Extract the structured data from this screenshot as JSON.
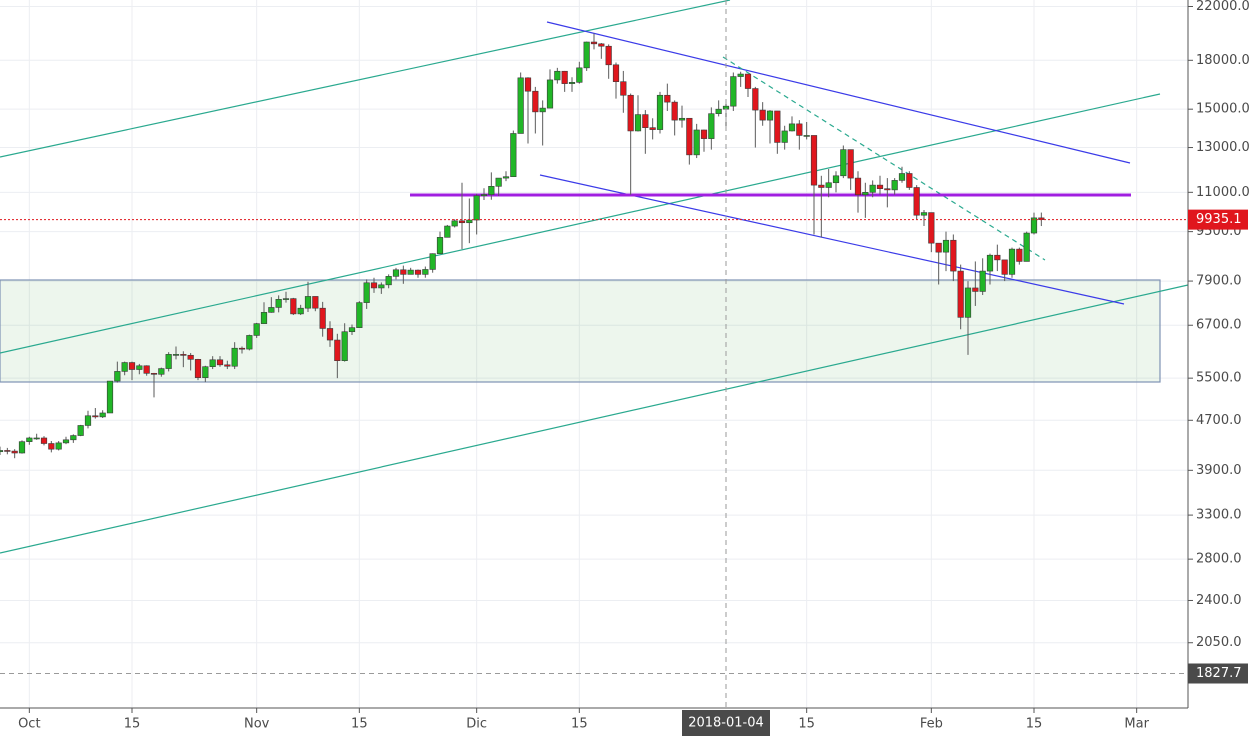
{
  "chart_data": {
    "type": "candlestick",
    "log_scale": true,
    "grid": true,
    "up_color": "#21b627",
    "down_color": "#e0161d",
    "xlim": [
      "2017-09-27",
      "2018-03-08"
    ],
    "ylim": [
      1607,
      22540
    ],
    "xticks": [
      {
        "value": "2017-10-01",
        "label": "Oct"
      },
      {
        "value": "2017-10-15",
        "label": "15"
      },
      {
        "value": "2017-11-01",
        "label": "Nov"
      },
      {
        "value": "2017-11-15",
        "label": "15"
      },
      {
        "value": "2017-12-01",
        "label": "Dic"
      },
      {
        "value": "2017-12-15",
        "label": "15"
      },
      {
        "value": "2018-01-15",
        "label": "15"
      },
      {
        "value": "2018-02-01",
        "label": "Feb"
      },
      {
        "value": "2018-02-15",
        "label": "15"
      },
      {
        "value": "2018-03-01",
        "label": "Mar"
      }
    ],
    "yticks": [
      {
        "value": 22000,
        "label": "22000.0"
      },
      {
        "value": 18000,
        "label": "18000.0"
      },
      {
        "value": 15000,
        "label": "15000.0"
      },
      {
        "value": 13000,
        "label": "13000.0"
      },
      {
        "value": 11000,
        "label": "11000.0"
      },
      {
        "value": 9500,
        "label": "9500.0"
      },
      {
        "value": 7900,
        "label": "7900.0"
      },
      {
        "value": 6700,
        "label": "6700.0"
      },
      {
        "value": 5500,
        "label": "5500.0"
      },
      {
        "value": 4700,
        "label": "4700.0"
      },
      {
        "value": 3900,
        "label": "3900.0"
      },
      {
        "value": 3300,
        "label": "3300.0"
      },
      {
        "value": 2800,
        "label": "2800.0"
      },
      {
        "value": 2400,
        "label": "2400.0"
      },
      {
        "value": 2050,
        "label": "2050.0"
      }
    ],
    "last_price": 9935.1,
    "crosshair": {
      "x": "2018-01-04",
      "y": 1827.7
    },
    "x": [
      "2017-09-27",
      "2017-09-28",
      "2017-09-29",
      "2017-09-30",
      "2017-10-01",
      "2017-10-02",
      "2017-10-03",
      "2017-10-04",
      "2017-10-05",
      "2017-10-06",
      "2017-10-07",
      "2017-10-08",
      "2017-10-09",
      "2017-10-10",
      "2017-10-11",
      "2017-10-12",
      "2017-10-13",
      "2017-10-14",
      "2017-10-15",
      "2017-10-16",
      "2017-10-17",
      "2017-10-18",
      "2017-10-19",
      "2017-10-20",
      "2017-10-21",
      "2017-10-22",
      "2017-10-23",
      "2017-10-24",
      "2017-10-25",
      "2017-10-26",
      "2017-10-27",
      "2017-10-28",
      "2017-10-29",
      "2017-10-30",
      "2017-10-31",
      "2017-11-01",
      "2017-11-02",
      "2017-11-03",
      "2017-11-04",
      "2017-11-05",
      "2017-11-06",
      "2017-11-07",
      "2017-11-08",
      "2017-11-09",
      "2017-11-10",
      "2017-11-11",
      "2017-11-12",
      "2017-11-13",
      "2017-11-14",
      "2017-11-15",
      "2017-11-16",
      "2017-11-17",
      "2017-11-18",
      "2017-11-19",
      "2017-11-20",
      "2017-11-21",
      "2017-11-22",
      "2017-11-23",
      "2017-11-24",
      "2017-11-25",
      "2017-11-26",
      "2017-11-27",
      "2017-11-28",
      "2017-11-29",
      "2017-11-30",
      "2017-12-01",
      "2017-12-02",
      "2017-12-03",
      "2017-12-04",
      "2017-12-05",
      "2017-12-06",
      "2017-12-07",
      "2017-12-08",
      "2017-12-09",
      "2017-12-10",
      "2017-12-11",
      "2017-12-12",
      "2017-12-13",
      "2017-12-14",
      "2017-12-15",
      "2017-12-16",
      "2017-12-17",
      "2017-12-18",
      "2017-12-19",
      "2017-12-20",
      "2017-12-21",
      "2017-12-22",
      "2017-12-23",
      "2017-12-24",
      "2017-12-25",
      "2017-12-26",
      "2017-12-27",
      "2017-12-28",
      "2017-12-29",
      "2017-12-30",
      "2017-12-31",
      "2018-01-01",
      "2018-01-02",
      "2018-01-03",
      "2018-01-04",
      "2018-01-05",
      "2018-01-06",
      "2018-01-07",
      "2018-01-08",
      "2018-01-09",
      "2018-01-10",
      "2018-01-11",
      "2018-01-12",
      "2018-01-13",
      "2018-01-14",
      "2018-01-15",
      "2018-01-16",
      "2018-01-17",
      "2018-01-18",
      "2018-01-19",
      "2018-01-20",
      "2018-01-21",
      "2018-01-22",
      "2018-01-23",
      "2018-01-24",
      "2018-01-25",
      "2018-01-26",
      "2018-01-27",
      "2018-01-28",
      "2018-01-29",
      "2018-01-30",
      "2018-01-31",
      "2018-02-01",
      "2018-02-02",
      "2018-02-03",
      "2018-02-04",
      "2018-02-05",
      "2018-02-06",
      "2018-02-07",
      "2018-02-08",
      "2018-02-09",
      "2018-02-10",
      "2018-02-11",
      "2018-02-12",
      "2018-02-13",
      "2018-02-14",
      "2018-02-15",
      "2018-02-16"
    ],
    "open": [
      4180,
      4200,
      4190,
      4160,
      4340,
      4400,
      4400,
      4310,
      4220,
      4320,
      4370,
      4440,
      4610,
      4780,
      4760,
      4830,
      5440,
      5640,
      5830,
      5680,
      5760,
      5600,
      5580,
      5700,
      6010,
      6010,
      5990,
      5900,
      5510,
      5740,
      5890,
      5780,
      5750,
      6150,
      6130,
      6450,
      6740,
      7030,
      7160,
      7380,
      7400,
      6990,
      7140,
      7460,
      7140,
      6620,
      6340,
      5870,
      6540,
      6640,
      7290,
      7850,
      7700,
      7790,
      8040,
      8240,
      8100,
      8230,
      8100,
      8250,
      8750,
      9300,
      9700,
      9890,
      9820,
      9920,
      10860,
      10910,
      11250,
      11600,
      11660,
      13700,
      16860,
      16040,
      14850,
      15060,
      16730,
      17280,
      16500,
      16580,
      17500,
      19270,
      19140,
      18970,
      17700,
      16620,
      15800,
      13830,
      14700,
      14000,
      13900,
      15800,
      15400,
      14400,
      14500,
      12650,
      13880,
      13440,
      14750,
      15000,
      15170,
      16940,
      17100,
      16200,
      14950,
      14400,
      14900,
      13250,
      13830,
      14200,
      13600,
      13600,
      11300,
      11200,
      11400,
      11700,
      12900,
      11600,
      10900,
      11000,
      11300,
      11150,
      11100,
      11500,
      11800,
      11200,
      10100,
      10200,
      9100,
      8800,
      9200,
      8200,
      6900,
      7700,
      7600,
      8200,
      8700,
      8550,
      8100,
      8900,
      8500,
      9450,
      10000
    ],
    "high": [
      4260,
      4240,
      4220,
      4360,
      4420,
      4470,
      4430,
      4350,
      4350,
      4420,
      4460,
      4620,
      4870,
      4920,
      4880,
      5440,
      5850,
      5850,
      5850,
      5800,
      5770,
      5610,
      5720,
      6060,
      6190,
      6080,
      6040,
      5910,
      5760,
      5970,
      5970,
      5870,
      6290,
      6190,
      6470,
      6760,
      7300,
      7440,
      7490,
      7590,
      7420,
      7230,
      7880,
      7460,
      7310,
      6800,
      6490,
      6750,
      6720,
      7330,
      7950,
      8000,
      7860,
      8100,
      8300,
      8370,
      8300,
      8250,
      8340,
      8760,
      9500,
      9740,
      9950,
      11400,
      10750,
      10940,
      11170,
      11850,
      11600,
      11900,
      13850,
      17200,
      16900,
      16300,
      15500,
      17400,
      17500,
      17300,
      16900,
      17900,
      19300,
      19890,
      19200,
      19100,
      17850,
      17300,
      15900,
      15800,
      14950,
      14500,
      16000,
      16500,
      15500,
      15200,
      14500,
      14200,
      13900,
      15100,
      15500,
      15300,
      17200,
      17250,
      17100,
      16300,
      15400,
      14950,
      14900,
      14100,
      14600,
      14400,
      14300,
      13600,
      11700,
      12000,
      11900,
      13100,
      12900,
      11900,
      11400,
      11500,
      11700,
      11600,
      11600,
      12100,
      11900,
      11300,
      10300,
      10200,
      9100,
      9500,
      9400,
      8400,
      7900,
      8500,
      8600,
      8750,
      9050,
      8550,
      8950,
      8950,
      9500,
      10200,
      10200
    ],
    "low": [
      4130,
      4140,
      4080,
      4150,
      4290,
      4370,
      4280,
      4170,
      4200,
      4300,
      4320,
      4430,
      4560,
      4730,
      4740,
      4830,
      5410,
      5560,
      5460,
      5580,
      5550,
      5120,
      5530,
      5640,
      5900,
      5730,
      5660,
      5460,
      5420,
      5690,
      5740,
      5690,
      5690,
      6030,
      6100,
      6390,
      6740,
      7020,
      7030,
      7290,
      6960,
      6960,
      7040,
      7060,
      6420,
      6180,
      5500,
      5850,
      6460,
      6640,
      7120,
      7560,
      7530,
      7690,
      7950,
      7820,
      8100,
      8000,
      8000,
      8150,
      8740,
      9300,
      9650,
      8900,
      9100,
      9400,
      10690,
      10700,
      10850,
      11470,
      11660,
      13700,
      13200,
      13700,
      13100,
      15060,
      16500,
      16000,
      16000,
      16500,
      17300,
      18750,
      18100,
      16800,
      15600,
      14800,
      10900,
      13800,
      12700,
      13400,
      13700,
      14900,
      13600,
      14000,
      12200,
      12500,
      12800,
      12900,
      14600,
      14000,
      14900,
      16300,
      15700,
      13000,
      14100,
      13200,
      12700,
      12900,
      13800,
      12900,
      13400,
      9400,
      9300,
      10800,
      11000,
      11600,
      11100,
      10200,
      10000,
      10800,
      10900,
      10400,
      10900,
      11400,
      11100,
      9950,
      9700,
      8800,
      7800,
      8200,
      7900,
      6600,
      6000,
      7200,
      7500,
      7800,
      8200,
      7900,
      8000,
      8400,
      8500,
      9400,
      9700
    ],
    "close": [
      4200,
      4190,
      4160,
      4340,
      4400,
      4400,
      4310,
      4220,
      4320,
      4370,
      4440,
      4610,
      4780,
      4760,
      4830,
      5440,
      5640,
      5830,
      5680,
      5760,
      5600,
      5580,
      5700,
      6010,
      6010,
      5990,
      5900,
      5510,
      5740,
      5890,
      5780,
      5750,
      6150,
      6130,
      6450,
      6740,
      7030,
      7160,
      7380,
      7400,
      6990,
      7140,
      7460,
      7140,
      6620,
      6340,
      5870,
      6540,
      6640,
      7290,
      7850,
      7700,
      7790,
      8040,
      8240,
      8100,
      8230,
      8100,
      8250,
      8750,
      9300,
      9700,
      9890,
      9820,
      9920,
      10860,
      10910,
      11250,
      11600,
      11660,
      13700,
      16860,
      16040,
      14850,
      15060,
      16730,
      17280,
      16500,
      16580,
      17500,
      19270,
      19140,
      18970,
      17700,
      16620,
      15800,
      13830,
      14700,
      14000,
      13900,
      15800,
      15400,
      14400,
      14500,
      12650,
      13880,
      13440,
      14750,
      15000,
      15170,
      16940,
      17100,
      16200,
      14950,
      14400,
      14900,
      13250,
      13830,
      14200,
      13600,
      13600,
      11300,
      11200,
      11400,
      11700,
      12900,
      11600,
      10900,
      11000,
      11300,
      11150,
      11100,
      11500,
      11800,
      11200,
      10100,
      10200,
      9100,
      8800,
      9200,
      8200,
      6900,
      7700,
      7600,
      8200,
      8700,
      8550,
      8100,
      8900,
      8500,
      9450,
      10000,
      9935.1
    ]
  }
}
